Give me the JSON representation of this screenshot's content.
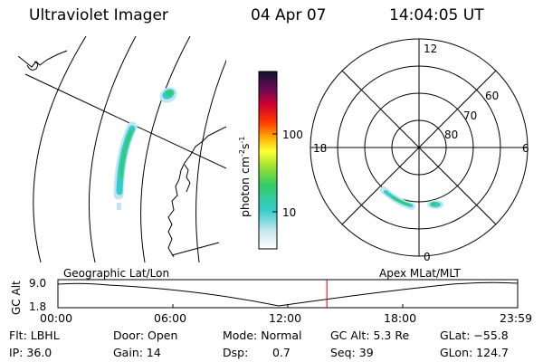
{
  "header": {
    "instrument": "Ultraviolet Imager",
    "date": "04 Apr 07",
    "time": "14:04:05 UT"
  },
  "colorbar": {
    "label": "photon cm",
    "label_sup": "-2",
    "label_mid": "s",
    "label_sup2": "-1",
    "ticks": [
      "100",
      "10"
    ]
  },
  "polar_plot": {
    "mlt_labels": [
      "12",
      "18",
      "6",
      "0"
    ],
    "lat_labels": [
      "60",
      "70",
      "80"
    ]
  },
  "timeline": {
    "left_label": "Geographic Lat/Lon",
    "right_label": "Apex MLat/MLT",
    "y_axis_label": "GC Alt",
    "y_ticks": [
      "9.0",
      "1.8"
    ],
    "x_ticks": [
      "00:00",
      "06:00",
      "12:00",
      "18:00",
      "23:59"
    ],
    "marker_time_fraction": 0.585
  },
  "status": {
    "flt": "Flt: LBHL",
    "ip": "IP: 36.0",
    "door": "Door: Open",
    "gain": "Gain: 14",
    "mode": "Mode: Normal",
    "dsp": "Dsp:",
    "dsp_value": "0.7",
    "gc_alt": "GC Alt: 5.3 Re",
    "seq": "Seq: 39",
    "glat": "GLat: −55.8",
    "glon": "GLon: 124.7"
  },
  "colors": {
    "marker": "#cc0000",
    "aurora_core": "#33cc33",
    "aurora_mid": "#33cccc",
    "aurora_edge": "#bfe6f0"
  }
}
